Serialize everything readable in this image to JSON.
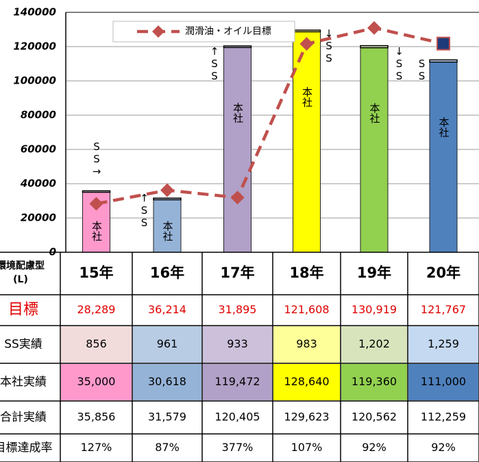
{
  "chart_data": {
    "type": "bar",
    "ylim": [
      0,
      140000
    ],
    "yticks": [
      0,
      20000,
      40000,
      60000,
      80000,
      100000,
      120000,
      140000
    ],
    "grid": true,
    "categories": [
      "15年",
      "16年",
      "17年",
      "18年",
      "19年",
      "20年"
    ],
    "bar_label": "本社",
    "annotations": [
      "SS→",
      "↑SS",
      "↑SS",
      "↓SS",
      "↓SS",
      "SS"
    ],
    "series": [
      {
        "name": "本社実績",
        "colors": [
          "#ff99cc",
          "#95b3d7",
          "#b1a0c7",
          "#ffff00",
          "#92d050",
          "#4f81bd"
        ],
        "values": [
          35000,
          30618,
          119472,
          128640,
          119360,
          111000
        ],
        "value_labels": [
          "35,000",
          "30,618",
          "119,472",
          "128,640",
          "119,360",
          "111,000"
        ]
      },
      {
        "name": "SS実績",
        "colors": [
          "#f2dcdb",
          "#b8cce4",
          "#ccc0da",
          "#ffff99",
          "#d7e4bc",
          "#c5d9f1"
        ],
        "values": [
          856,
          961,
          933,
          983,
          1202,
          1259
        ],
        "value_labels": [
          "856",
          "961",
          "933",
          "983",
          "1,202",
          "1,259"
        ]
      },
      {
        "name": "潤滑油・オイル目標",
        "type": "line",
        "color": "#c0504d",
        "marker_colors": [
          "#c0504d",
          "#c0504d",
          "#c0504d",
          "#c0504d",
          "#c0504d",
          "#1f3a78"
        ],
        "values": [
          28289,
          36214,
          31895,
          121608,
          130919,
          121767
        ],
        "value_labels": [
          "28,289",
          "36,214",
          "31,895",
          "121,608",
          "130,919",
          "121,767"
        ]
      }
    ]
  },
  "table": {
    "corner": [
      "環境配慮型",
      "(L)"
    ],
    "target_label": "目標",
    "total": {
      "label": "合計実績",
      "values": [
        "35,856",
        "31,579",
        "120,405",
        "129,623",
        "120,562",
        "112,259"
      ]
    },
    "rate": {
      "label": "目標達成率",
      "values": [
        "127%",
        "87%",
        "377%",
        "107%",
        "92%",
        "92%"
      ]
    }
  }
}
